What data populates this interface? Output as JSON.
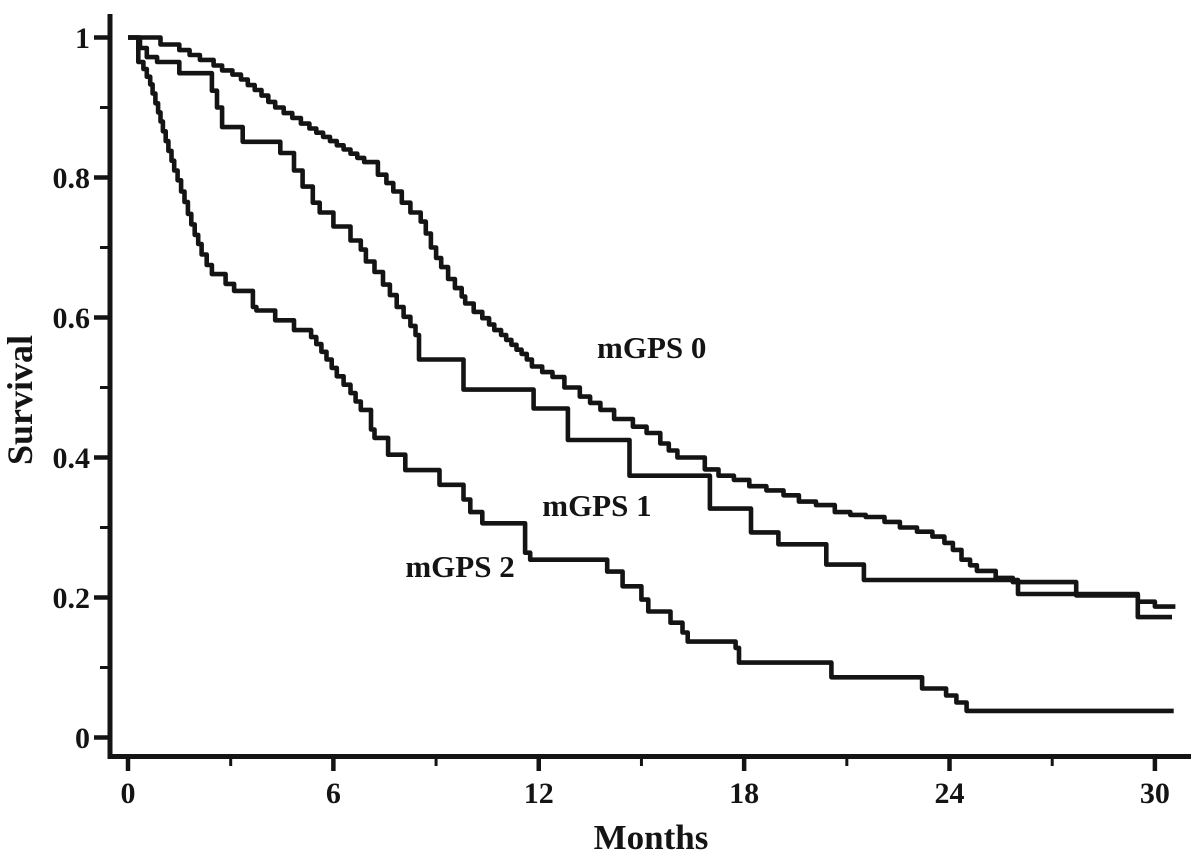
{
  "page": {
    "background": "#ffffff",
    "ink_color": "#141414"
  },
  "chart_data": {
    "type": "line",
    "subtype": "kaplan_meier_step",
    "title": "",
    "xlabel": "Months",
    "ylabel": "Survival",
    "grid": false,
    "legend_position": "inline-annotations",
    "line_color": "#141414",
    "x_axis": {
      "major_ticks": [
        0,
        6,
        12,
        18,
        24,
        30
      ],
      "major_tick_labels": [
        "0",
        "6",
        "12",
        "18",
        "24",
        "30"
      ],
      "minor_ticks": [
        3,
        9,
        15,
        21,
        27
      ],
      "range_shown": [
        0,
        31
      ]
    },
    "y_axis": {
      "major_ticks": [
        1,
        0.8,
        0.6,
        0.4,
        0.2,
        0
      ],
      "major_tick_labels": [
        "1",
        "0.8",
        "0.6",
        "0.4",
        "0.2",
        "0"
      ],
      "minor_ticks": [
        0.9,
        0.7,
        0.5,
        0.3,
        0.1
      ],
      "range_shown": [
        0,
        1.04
      ]
    },
    "annotations": [
      {
        "text": "mGPS 0",
        "month": 15.3,
        "survival": 0.558
      },
      {
        "text": "mGPS 1",
        "month": 13.7,
        "survival": 0.332
      },
      {
        "text": "mGPS 2",
        "month": 9.7,
        "survival": 0.245
      }
    ],
    "series": [
      {
        "name": "mGPS 0",
        "end_month": 30.6,
        "points": [
          [
            0,
            1.0
          ],
          [
            0.95,
            0.99
          ],
          [
            1.5,
            0.982
          ],
          [
            1.8,
            0.975
          ],
          [
            2.1,
            0.968
          ],
          [
            2.5,
            0.96
          ],
          [
            2.75,
            0.953
          ],
          [
            3.05,
            0.947
          ],
          [
            3.3,
            0.94
          ],
          [
            3.5,
            0.932
          ],
          [
            3.7,
            0.925
          ],
          [
            3.9,
            0.917
          ],
          [
            4.1,
            0.908
          ],
          [
            4.3,
            0.9
          ],
          [
            4.55,
            0.892
          ],
          [
            4.8,
            0.885
          ],
          [
            5.05,
            0.877
          ],
          [
            5.3,
            0.87
          ],
          [
            5.5,
            0.864
          ],
          [
            5.7,
            0.858
          ],
          [
            5.9,
            0.852
          ],
          [
            6.1,
            0.846
          ],
          [
            6.3,
            0.84
          ],
          [
            6.5,
            0.834
          ],
          [
            6.7,
            0.828
          ],
          [
            6.9,
            0.822
          ],
          [
            7.3,
            0.804
          ],
          [
            7.55,
            0.792
          ],
          [
            7.75,
            0.78
          ],
          [
            8.0,
            0.764
          ],
          [
            8.25,
            0.75
          ],
          [
            8.55,
            0.737
          ],
          [
            8.7,
            0.72
          ],
          [
            8.85,
            0.7
          ],
          [
            9.0,
            0.685
          ],
          [
            9.15,
            0.672
          ],
          [
            9.35,
            0.655
          ],
          [
            9.55,
            0.642
          ],
          [
            9.75,
            0.63
          ],
          [
            9.85,
            0.62
          ],
          [
            10.1,
            0.608
          ],
          [
            10.35,
            0.599
          ],
          [
            10.55,
            0.59
          ],
          [
            10.7,
            0.582
          ],
          [
            10.9,
            0.575
          ],
          [
            11.05,
            0.568
          ],
          [
            11.2,
            0.561
          ],
          [
            11.35,
            0.554
          ],
          [
            11.5,
            0.548
          ],
          [
            11.65,
            0.54
          ],
          [
            11.8,
            0.53
          ],
          [
            12.1,
            0.522
          ],
          [
            12.4,
            0.515
          ],
          [
            12.75,
            0.5
          ],
          [
            13.2,
            0.487
          ],
          [
            13.5,
            0.478
          ],
          [
            13.8,
            0.468
          ],
          [
            14.2,
            0.455
          ],
          [
            14.75,
            0.444
          ],
          [
            15.15,
            0.435
          ],
          [
            15.55,
            0.42
          ],
          [
            15.8,
            0.41
          ],
          [
            16.05,
            0.4
          ],
          [
            16.85,
            0.383
          ],
          [
            17.25,
            0.374
          ],
          [
            17.7,
            0.368
          ],
          [
            18.15,
            0.359
          ],
          [
            18.65,
            0.353
          ],
          [
            19.15,
            0.346
          ],
          [
            19.6,
            0.337
          ],
          [
            20.1,
            0.332
          ],
          [
            20.65,
            0.322
          ],
          [
            21.1,
            0.318
          ],
          [
            21.55,
            0.315
          ],
          [
            22.1,
            0.308
          ],
          [
            22.55,
            0.3
          ],
          [
            23.05,
            0.294
          ],
          [
            23.5,
            0.287
          ],
          [
            23.85,
            0.278
          ],
          [
            24.1,
            0.268
          ],
          [
            24.35,
            0.254
          ],
          [
            24.6,
            0.246
          ],
          [
            24.8,
            0.238
          ],
          [
            25.35,
            0.228
          ],
          [
            25.85,
            0.222
          ],
          [
            27.7,
            0.203
          ],
          [
            29.5,
            0.194
          ],
          [
            30.0,
            0.187
          ]
        ]
      },
      {
        "name": "mGPS 1",
        "end_month": 30.5,
        "points": [
          [
            0,
            1.0
          ],
          [
            0.35,
            0.985
          ],
          [
            0.55,
            0.972
          ],
          [
            0.85,
            0.965
          ],
          [
            1.5,
            0.949
          ],
          [
            2.45,
            0.924
          ],
          [
            2.6,
            0.9
          ],
          [
            2.75,
            0.872
          ],
          [
            3.35,
            0.851
          ],
          [
            4.45,
            0.835
          ],
          [
            4.85,
            0.81
          ],
          [
            5.1,
            0.787
          ],
          [
            5.4,
            0.764
          ],
          [
            5.6,
            0.75
          ],
          [
            6.0,
            0.73
          ],
          [
            6.5,
            0.71
          ],
          [
            6.8,
            0.697
          ],
          [
            6.95,
            0.68
          ],
          [
            7.2,
            0.665
          ],
          [
            7.45,
            0.647
          ],
          [
            7.65,
            0.632
          ],
          [
            7.85,
            0.615
          ],
          [
            8.05,
            0.601
          ],
          [
            8.25,
            0.588
          ],
          [
            8.4,
            0.575
          ],
          [
            8.5,
            0.54
          ],
          [
            9.8,
            0.497
          ],
          [
            11.85,
            0.47
          ],
          [
            12.85,
            0.425
          ],
          [
            14.65,
            0.374
          ],
          [
            17.0,
            0.327
          ],
          [
            18.2,
            0.293
          ],
          [
            19.0,
            0.276
          ],
          [
            20.4,
            0.247
          ],
          [
            21.5,
            0.225
          ],
          [
            26.0,
            0.205
          ],
          [
            29.5,
            0.172
          ]
        ]
      },
      {
        "name": "mGPS 2",
        "end_month": 30.55,
        "points": [
          [
            0,
            1.0
          ],
          [
            0.3,
            0.965
          ],
          [
            0.45,
            0.955
          ],
          [
            0.55,
            0.944
          ],
          [
            0.65,
            0.933
          ],
          [
            0.72,
            0.92
          ],
          [
            0.8,
            0.906
          ],
          [
            0.88,
            0.893
          ],
          [
            0.95,
            0.88
          ],
          [
            1.02,
            0.866
          ],
          [
            1.1,
            0.852
          ],
          [
            1.18,
            0.838
          ],
          [
            1.27,
            0.824
          ],
          [
            1.35,
            0.81
          ],
          [
            1.45,
            0.796
          ],
          [
            1.55,
            0.78
          ],
          [
            1.65,
            0.765
          ],
          [
            1.75,
            0.748
          ],
          [
            1.85,
            0.733
          ],
          [
            1.95,
            0.718
          ],
          [
            2.05,
            0.705
          ],
          [
            2.15,
            0.69
          ],
          [
            2.3,
            0.675
          ],
          [
            2.45,
            0.662
          ],
          [
            2.85,
            0.648
          ],
          [
            3.1,
            0.638
          ],
          [
            3.65,
            0.615
          ],
          [
            3.75,
            0.61
          ],
          [
            4.3,
            0.596
          ],
          [
            4.85,
            0.582
          ],
          [
            5.35,
            0.572
          ],
          [
            5.5,
            0.562
          ],
          [
            5.65,
            0.551
          ],
          [
            5.8,
            0.54
          ],
          [
            5.95,
            0.528
          ],
          [
            6.1,
            0.516
          ],
          [
            6.3,
            0.504
          ],
          [
            6.5,
            0.492
          ],
          [
            6.65,
            0.48
          ],
          [
            6.8,
            0.468
          ],
          [
            7.1,
            0.44
          ],
          [
            7.2,
            0.428
          ],
          [
            7.6,
            0.404
          ],
          [
            8.1,
            0.382
          ],
          [
            9.1,
            0.361
          ],
          [
            9.8,
            0.34
          ],
          [
            10.0,
            0.322
          ],
          [
            10.35,
            0.306
          ],
          [
            11.6,
            0.264
          ],
          [
            11.75,
            0.254
          ],
          [
            14.0,
            0.237
          ],
          [
            14.45,
            0.216
          ],
          [
            15.0,
            0.197
          ],
          [
            15.2,
            0.18
          ],
          [
            15.85,
            0.164
          ],
          [
            16.2,
            0.15
          ],
          [
            16.35,
            0.137
          ],
          [
            17.75,
            0.128
          ],
          [
            17.85,
            0.107
          ],
          [
            20.55,
            0.086
          ],
          [
            23.2,
            0.07
          ],
          [
            23.9,
            0.06
          ],
          [
            24.2,
            0.05
          ],
          [
            24.5,
            0.038
          ]
        ]
      }
    ]
  }
}
